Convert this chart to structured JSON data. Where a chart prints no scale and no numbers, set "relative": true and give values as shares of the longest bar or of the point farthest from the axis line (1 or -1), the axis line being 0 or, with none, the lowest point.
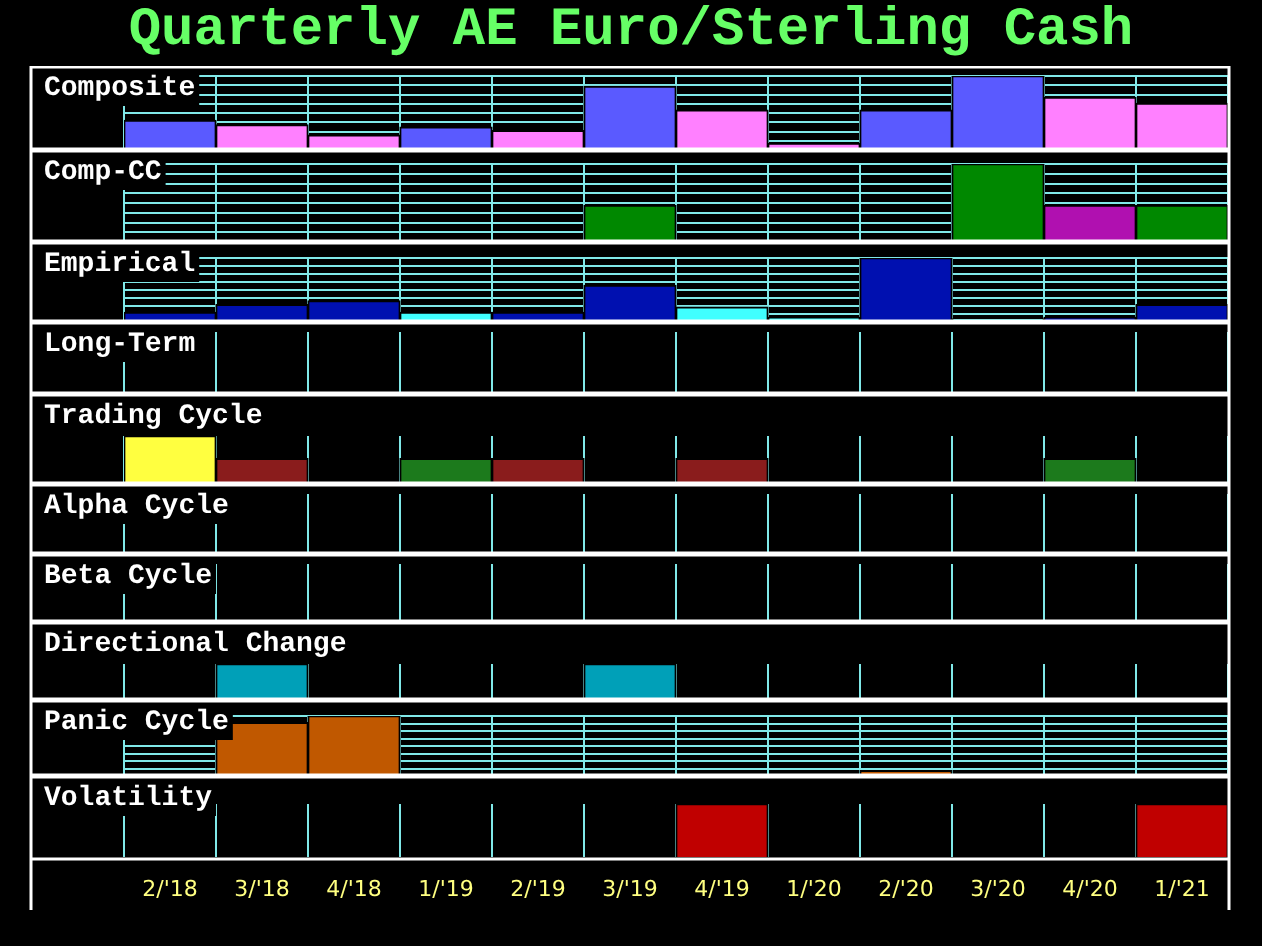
{
  "chart_data": [
    {
      "type": "bar",
      "title": "Quarterly AE Euro/Sterling Cash",
      "ylabel": "Composite",
      "categories": [
        null,
        null,
        null,
        null,
        null,
        null,
        null,
        null,
        null,
        null,
        null,
        null
      ],
      "values": [
        0.4,
        0.34,
        0.2,
        0.31,
        0.26,
        0.86,
        0.54,
        0.09,
        0.54,
        1,
        0.71,
        0.63
      ],
      "colors": [
        "#5a5aff",
        "#ff80ff",
        "#ff80ff",
        "#5a5aff",
        "#ff80ff",
        "#5a5aff",
        "#ff80ff",
        "#ff80ff",
        "#5a5aff",
        "#5a5aff",
        "#ff80ff",
        "#ff80ff"
      ],
      "relative": true,
      "grid": true
    },
    {
      "type": "bar",
      "ylabel": "Comp-CC",
      "categories": [
        null,
        null,
        null,
        null,
        null,
        null,
        null,
        null,
        null,
        null,
        null,
        null
      ],
      "values": [
        null,
        null,
        null,
        null,
        null,
        0.47,
        null,
        null,
        null,
        1,
        0.47,
        0.47
      ],
      "colors": [
        "#008800",
        "#008800",
        "#008800",
        "#008800",
        "#008800",
        "#008800",
        "#008800",
        "#008800",
        "#008800",
        "#008800",
        "#b010b0",
        "#008800"
      ],
      "relative": true,
      "grid": true
    },
    {
      "type": "bar",
      "ylabel": "Empirical",
      "categories": [
        null,
        null,
        null,
        null,
        null,
        null,
        null,
        null,
        null,
        null,
        null,
        null
      ],
      "values": [
        0.15,
        0.27,
        0.33,
        0.15,
        0.15,
        0.57,
        0.23,
        0.07,
        1,
        0.05,
        0.07,
        0.27
      ],
      "colors": [
        "#0010b0",
        "#0010b0",
        "#0010b0",
        "#40ffff",
        "#0010b0",
        "#0010b0",
        "#40ffff",
        "#40ffff",
        "#0010b0",
        "#40ffff",
        "#0010b0",
        "#0010b0"
      ],
      "relative": true,
      "grid": true
    },
    {
      "type": "other",
      "ylabel": "Long-Term"
    },
    {
      "type": "bar",
      "ylabel": "Trading Cycle",
      "categories": [
        null,
        null,
        null,
        null,
        null,
        null,
        null,
        null,
        null,
        null,
        null,
        null
      ],
      "values": [
        1,
        0.53,
        null,
        0.53,
        0.53,
        null,
        0.53,
        null,
        null,
        null,
        0.53,
        null
      ],
      "colors": [
        "#ffff40",
        "#8a1c1c",
        "#8a1c1c",
        "#1c7a1c",
        "#8a1c1c",
        "#8a1c1c",
        "#8a1c1c",
        "#8a1c1c",
        "#8a1c1c",
        "#8a1c1c",
        "#1c7a1c",
        "#8a1c1c"
      ],
      "relative": true,
      "grid": "x"
    },
    {
      "type": "other",
      "ylabel": "Alpha Cycle"
    },
    {
      "type": "other",
      "ylabel": "Beta Cycle"
    },
    {
      "type": "bar",
      "ylabel": "Directional Change",
      "categories": [
        null,
        null,
        null,
        null,
        null,
        null,
        null,
        null,
        null,
        null,
        null,
        null
      ],
      "values": [
        null,
        1,
        null,
        null,
        null,
        1,
        null,
        null,
        null,
        null,
        null,
        null
      ],
      "colors": [
        "#00a0b8",
        "#00a0b8",
        "#00a0b8",
        "#00a0b8",
        "#00a0b8",
        "#00a0b8",
        "#00a0b8",
        "#00a0b8",
        "#00a0b8",
        "#00a0b8",
        "#00a0b8",
        "#00a0b8"
      ],
      "relative": true,
      "grid": "x"
    },
    {
      "type": "bar",
      "ylabel": "Panic Cycle",
      "categories": [
        null,
        null,
        null,
        null,
        null,
        null,
        null,
        null,
        null,
        null,
        null,
        null
      ],
      "values": [
        null,
        0.89,
        1,
        null,
        null,
        null,
        null,
        null,
        0.09,
        null,
        null,
        null
      ],
      "colors": [
        "#c05800",
        "#c05800",
        "#c05800",
        "#c05800",
        "#c05800",
        "#c05800",
        "#c05800",
        "#c05800",
        "#c05800",
        "#c05800",
        "#c05800",
        "#c05800"
      ],
      "relative": true,
      "grid": true
    },
    {
      "type": "bar",
      "ylabel": "Volatility",
      "categories": [
        "2/'18",
        "3/'18",
        "4/'18",
        "1/'19",
        "2/'19",
        "3/'19",
        "4/'19",
        "1/'20",
        "2/'20",
        "3/'20",
        "4/'20",
        "1/'21"
      ],
      "values": [
        null,
        null,
        null,
        null,
        null,
        null,
        1,
        null,
        null,
        null,
        null,
        1
      ],
      "colors": [
        "#c00000",
        "#c00000",
        "#c00000",
        "#c00000",
        "#c00000",
        "#c00000",
        "#c00000",
        "#c00000",
        "#c00000",
        "#c00000",
        "#c00000",
        "#c00000"
      ],
      "relative": true,
      "grid": "x",
      "tick_labels": "x"
    }
  ]
}
